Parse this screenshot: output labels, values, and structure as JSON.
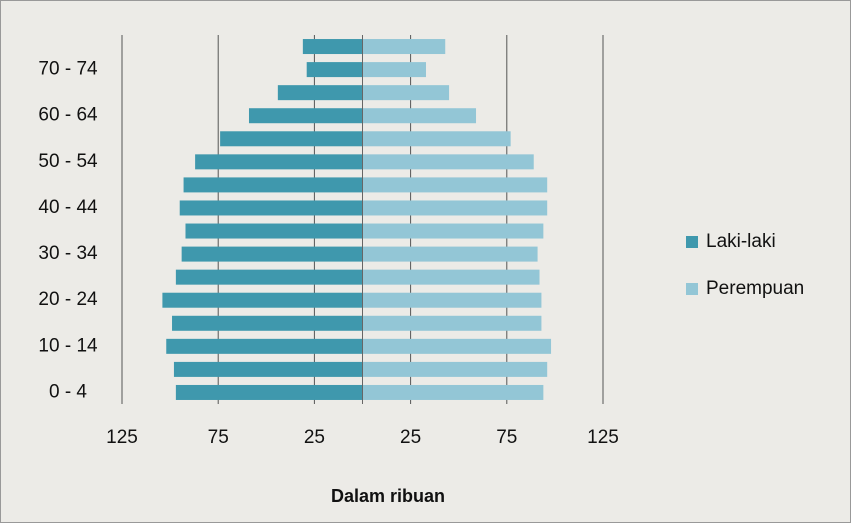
{
  "chart_data": {
    "type": "pyramid",
    "xlabel": "Dalam ribuan",
    "categories": [
      "0 - 4",
      null,
      "10 - 14",
      null,
      "20 - 24",
      null,
      "30 - 34",
      null,
      "40 - 44",
      null,
      "50 - 54",
      null,
      "60 - 64",
      null,
      "70 - 74",
      null
    ],
    "series": [
      {
        "name": "Laki-laki",
        "color": "#3f98ad",
        "values": [
          -97,
          -98,
          -102,
          -99,
          -104,
          -97,
          -94,
          -92,
          -95,
          -93,
          -87,
          -74,
          -59,
          -44,
          -29,
          -31
        ]
      },
      {
        "name": "Perempuan",
        "color": "#93c6d6",
        "values": [
          94,
          96,
          98,
          93,
          93,
          92,
          91,
          94,
          96,
          96,
          89,
          77,
          59,
          45,
          33,
          43
        ]
      }
    ],
    "xlim": [
      -125,
      125
    ],
    "xticks": [
      {
        "value": -125,
        "label": "125"
      },
      {
        "value": -75,
        "label": "75"
      },
      {
        "value": -25,
        "label": "25"
      },
      25,
      75,
      125
    ],
    "grid": true,
    "legend": "right"
  }
}
